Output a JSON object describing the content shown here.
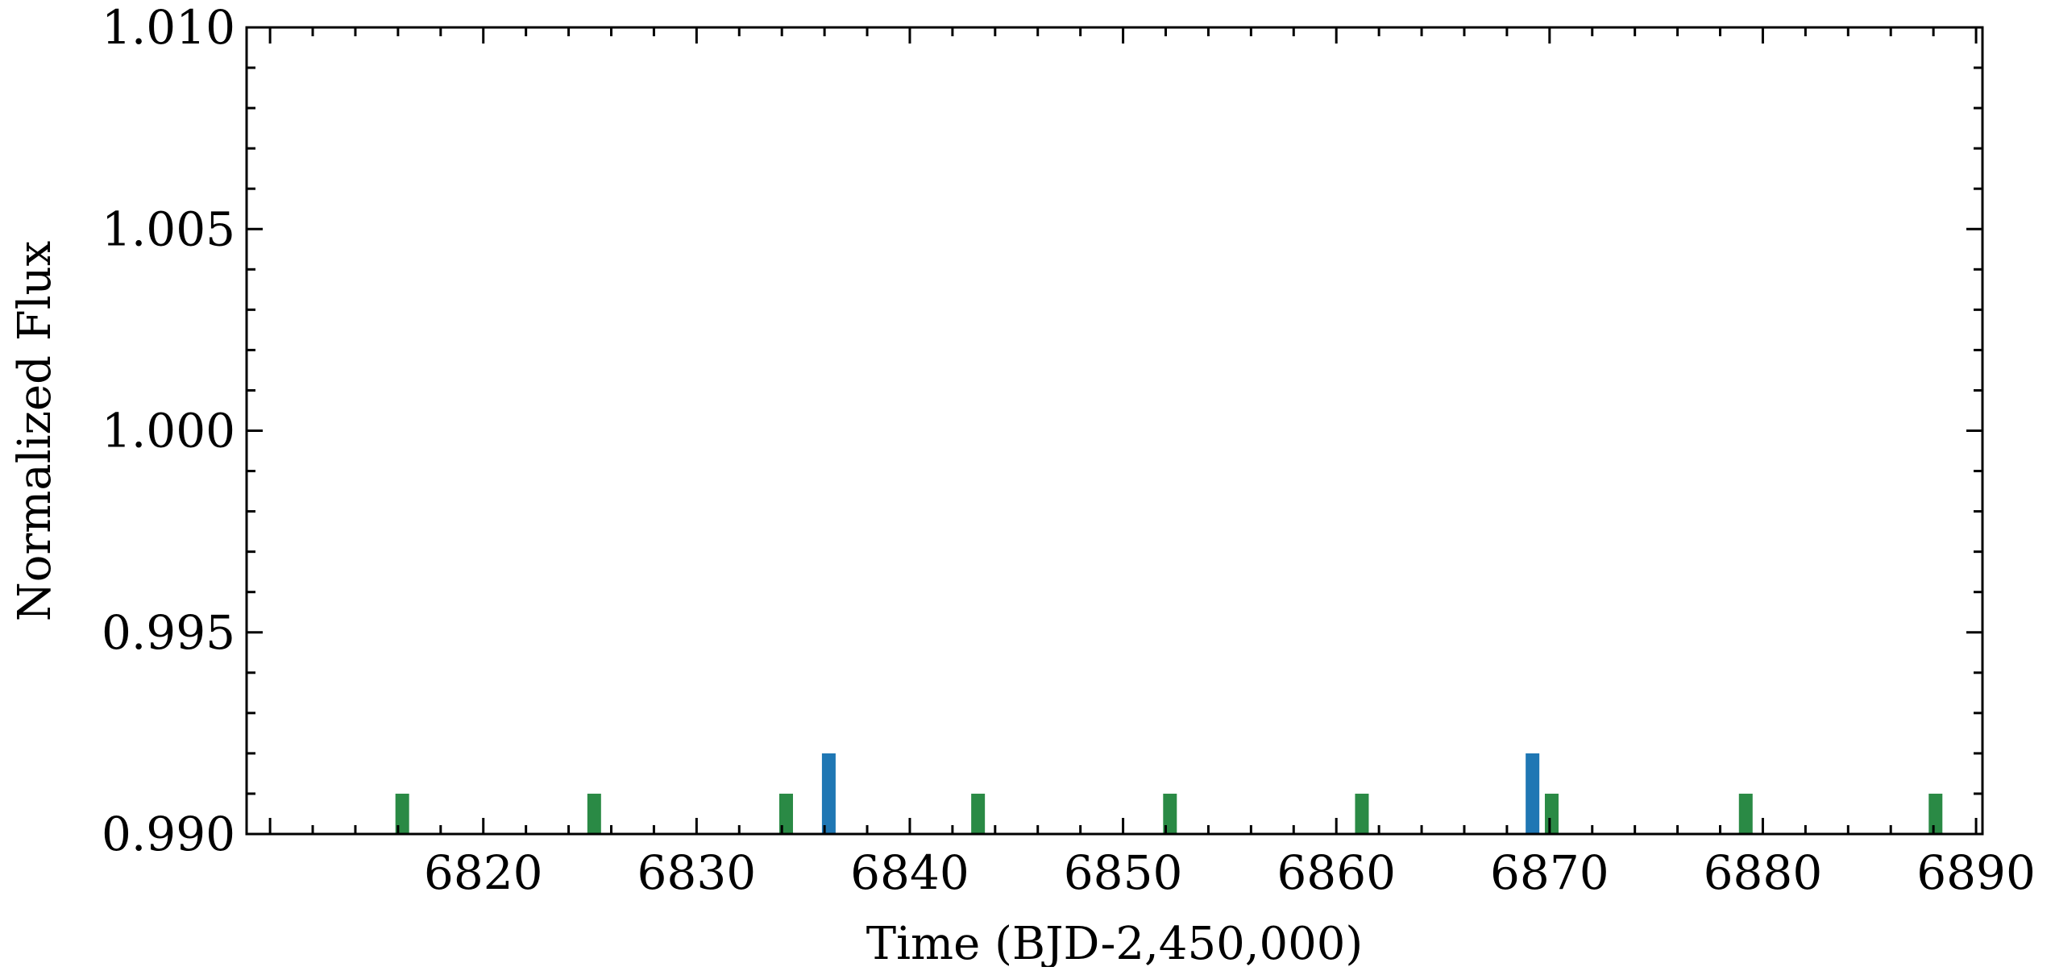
{
  "chart_data": {
    "type": "bar",
    "xlabel": "Time (BJD-2,450,000)",
    "ylabel": "Normalized Flux",
    "xlim": [
      6808.9,
      6890.3
    ],
    "ylim": [
      0.99,
      1.01
    ],
    "x_ticks": [
      6820,
      6830,
      6840,
      6850,
      6860,
      6870,
      6880,
      6890
    ],
    "x_tick_labels": [
      "6820",
      "6830",
      "6840",
      "6850",
      "6860",
      "6870",
      "6880",
      "6890"
    ],
    "y_ticks": [
      0.99,
      0.995,
      1.0,
      1.005,
      1.01
    ],
    "y_tick_labels": [
      "0.990",
      "0.995",
      "1.000",
      "1.005",
      "1.010"
    ],
    "grid": false,
    "series": [
      {
        "color": "#1f77b4",
        "x": [
          6836.2,
          6869.2
        ],
        "values": [
          0.992,
          0.992
        ]
      },
      {
        "color": "#2a8a45",
        "x": [
          6816.2,
          6825.2,
          6834.2,
          6843.2,
          6852.2,
          6861.2,
          6870.1,
          6879.2,
          6888.1
        ],
        "values": [
          0.991,
          0.991,
          0.991,
          0.991,
          0.991,
          0.991,
          0.991,
          0.991,
          0.991
        ]
      }
    ]
  }
}
